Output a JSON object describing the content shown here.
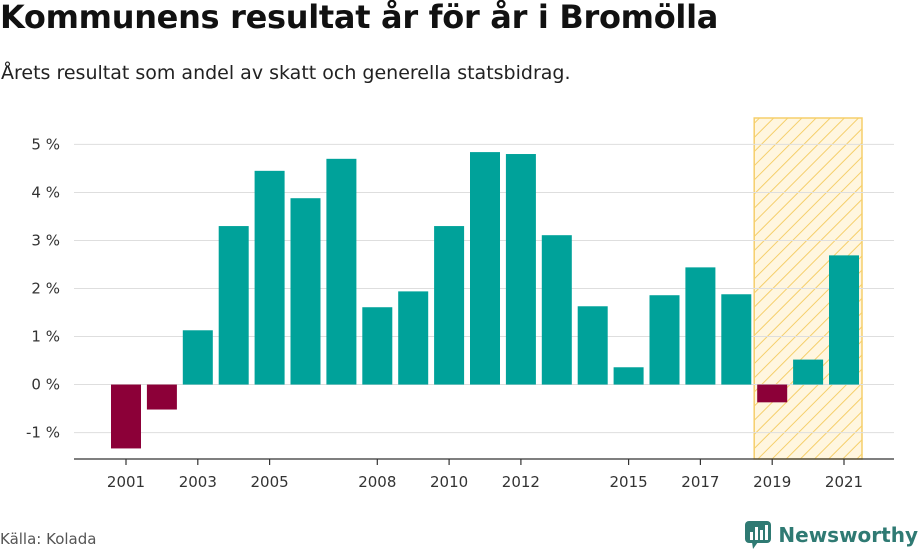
{
  "title": "Kommunens resultat år för år i Bromölla",
  "subtitle": "Årets resultat som andel av skatt och generella statsbidrag.",
  "source": "Källa: Kolada",
  "brand": {
    "name": "Newsworthy",
    "icon": "chat-bar-chart-icon"
  },
  "colors": {
    "positive": "#00a29a",
    "negative": "#8c0038",
    "highlight_fill": "#fff6df",
    "highlight_stroke": "#f5cf6b",
    "grid": "#dedede",
    "axis": "#333333",
    "brand": "#2f7a73"
  },
  "chart_data": {
    "type": "bar",
    "categories": [
      "2001",
      "2002",
      "2003",
      "2004",
      "2005",
      "2006",
      "2007",
      "2008",
      "2009",
      "2010",
      "2011",
      "2012",
      "2013",
      "2014",
      "2015",
      "2016",
      "2017",
      "2018",
      "2019",
      "2020",
      "2021"
    ],
    "values": [
      -1.33,
      -0.52,
      1.13,
      3.3,
      4.45,
      3.88,
      4.7,
      1.61,
      1.94,
      3.3,
      4.84,
      4.8,
      3.11,
      1.63,
      0.36,
      1.86,
      2.44,
      1.88,
      -0.37,
      0.52,
      2.69
    ],
    "x_tick_labels": [
      "2001",
      "2003",
      "2005",
      "2008",
      "2010",
      "2012",
      "2015",
      "2017",
      "2019",
      "2021"
    ],
    "y_ticks": [
      -1,
      0,
      1,
      2,
      3,
      4,
      5
    ],
    "y_tick_labels": [
      "-1 %",
      "0 %",
      "1 %",
      "2 %",
      "3 %",
      "4 %",
      "5 %"
    ],
    "ylim": [
      -1.55,
      5.55
    ],
    "highlight": {
      "from": "2019",
      "to": "2021"
    },
    "xlabel": "",
    "ylabel": "",
    "grid": true,
    "legend": "none"
  }
}
